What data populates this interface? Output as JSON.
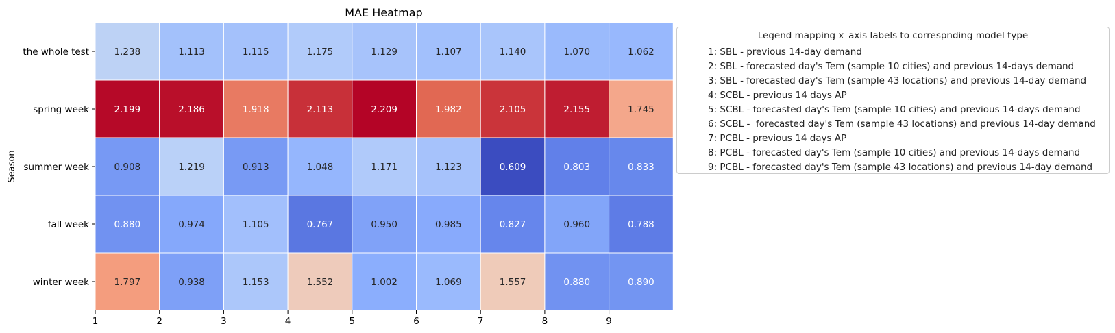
{
  "chart_data": {
    "type": "heatmap",
    "title": "MAE Heatmap",
    "ylabel": "Season",
    "xlabel": "",
    "x_ticks": [
      "1",
      "2",
      "3",
      "4",
      "5",
      "6",
      "7",
      "8",
      "9"
    ],
    "rows": [
      "the whole test",
      "spring week",
      "summer week",
      "fall week",
      "winter week"
    ],
    "values": [
      [
        1.238,
        1.113,
        1.115,
        1.175,
        1.129,
        1.107,
        1.14,
        1.07,
        1.062
      ],
      [
        2.199,
        2.186,
        1.918,
        2.113,
        2.209,
        1.982,
        2.105,
        2.155,
        1.745
      ],
      [
        0.908,
        1.219,
        0.913,
        1.048,
        1.171,
        1.123,
        0.609,
        0.803,
        0.833
      ],
      [
        0.88,
        0.974,
        1.105,
        0.767,
        0.95,
        0.985,
        0.827,
        0.96,
        0.788
      ],
      [
        1.797,
        0.938,
        1.153,
        1.552,
        1.002,
        1.069,
        1.557,
        0.88,
        0.89
      ]
    ],
    "colormap": "coolwarm",
    "color_range": [
      0.609,
      2.209
    ],
    "grid": false,
    "colorbar": false,
    "legend_placement": "right, outside axes",
    "legend": {
      "title": "Legend mapping x_axis labels to correspnding model type",
      "entries": [
        "1: SBL - previous 14-day demand",
        "2: SBL - forecasted day's Tem (sample 10 cities) and previous 14-days demand",
        "3: SBL - forecasted day's Tem (sample 43 locations) and previous 14-day demand",
        "4: SCBL - previous 14 days AP",
        "5: SCBL - forecasted day's Tem (sample 10 cities) and previous 14-days demand",
        "6: SCBL -  forecasted day's Tem (sample 43 locations) and previous 14-day demand",
        "7: PCBL - previous 14 days AP",
        "8: PCBL - forecasted day's Tem (sample 10 cities) and previous 14-days demand",
        "9: PCBL - forecasted day's Tem (sample 43 locations) and previous 14-day demand"
      ]
    }
  }
}
